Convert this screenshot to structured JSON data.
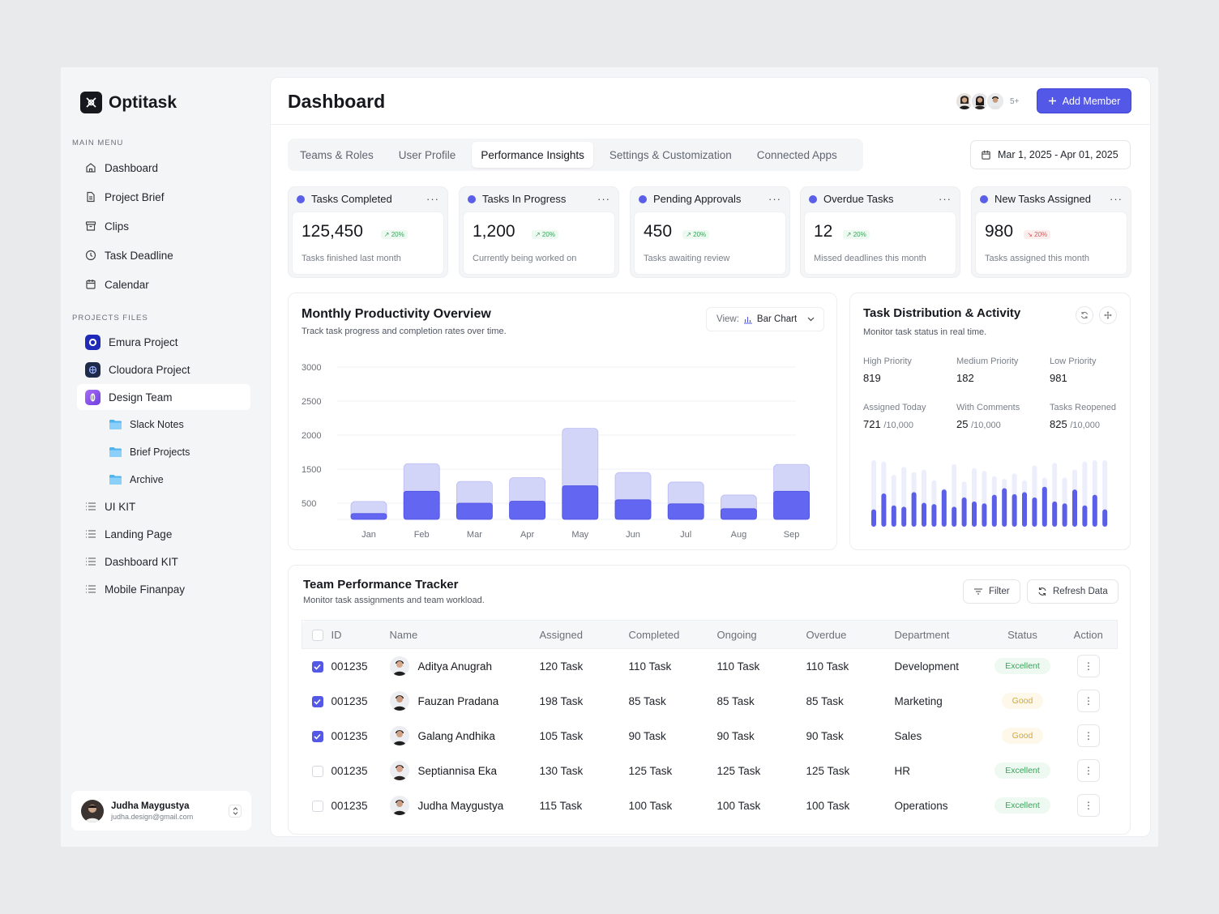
{
  "app": {
    "name": "Optitask"
  },
  "sidebar": {
    "main_menu_label": "MAIN MENU",
    "main_items": [
      {
        "label": "Dashboard",
        "icon": "home-icon"
      },
      {
        "label": "Project Brief",
        "icon": "document-icon"
      },
      {
        "label": "Clips",
        "icon": "archive-icon"
      },
      {
        "label": "Task Deadline",
        "icon": "clock-icon"
      },
      {
        "label": "Calendar",
        "icon": "calendar-icon"
      }
    ],
    "projects_label": "PROJECTS FILES",
    "projects": [
      {
        "label": "Emura Project",
        "color": "#2b3bd4"
      },
      {
        "label": "Cloudora Project",
        "color": "#1e2a4a"
      },
      {
        "label": "Design Team",
        "color": "#8b4de8"
      }
    ],
    "folders": [
      {
        "label": "Slack Notes"
      },
      {
        "label": "Brief Projects"
      },
      {
        "label": "Archive"
      }
    ],
    "kits": [
      {
        "label": "UI KIT"
      },
      {
        "label": "Landing Page"
      },
      {
        "label": "Dashboard KIT"
      },
      {
        "label": "Mobile Finanpay"
      }
    ],
    "user": {
      "name": "Judha Maygustya",
      "email": "judha.design@gmail.com"
    }
  },
  "header": {
    "title": "Dashboard",
    "more_members": "5+",
    "add_member": "Add Member"
  },
  "tabs": [
    {
      "label": "Teams & Roles"
    },
    {
      "label": "User Profile"
    },
    {
      "label": "Performance Insights",
      "active": true
    },
    {
      "label": "Settings & Customization"
    },
    {
      "label": "Connected Apps"
    }
  ],
  "date_range": "Mar 1, 2025 -  Apr 01, 2025",
  "kpis": [
    {
      "title": "Tasks Completed",
      "value": "125,450",
      "change": "↗ 20%",
      "trend": "up",
      "sub": "Tasks finished last month"
    },
    {
      "title": "Tasks In Progress",
      "value": "1,200",
      "change": "↗ 20%",
      "trend": "up",
      "sub": "Currently being worked on"
    },
    {
      "title": "Pending Approvals",
      "value": "450",
      "change": "↗ 20%",
      "trend": "up",
      "sub": "Tasks awaiting review"
    },
    {
      "title": "Overdue Tasks",
      "value": "12",
      "change": "↗ 20%",
      "trend": "up",
      "sub": "Missed deadlines this month"
    },
    {
      "title": "New Tasks Assigned",
      "value": "980",
      "change": "↘ 20%",
      "trend": "down",
      "sub": "Tasks assigned this month"
    }
  ],
  "productivity": {
    "title": "Monthly Productivity Overview",
    "subtitle": "Track task progress and completion rates over time.",
    "view_label": "View:",
    "view_value": "Bar Chart"
  },
  "chart_data": {
    "type": "bar",
    "categories": [
      "Jan",
      "Feb",
      "Mar",
      "Apr",
      "May",
      "Jun",
      "Jul",
      "Aug",
      "Sep"
    ],
    "y_ticks": [
      "3000",
      "2500",
      "2000",
      "1500",
      "500"
    ],
    "series": [
      {
        "values": [
          550,
          1580,
          1140,
          1250,
          2100,
          1400,
          1120,
          740,
          1570
        ]
      },
      {
        "values": [
          180,
          850,
          500,
          560,
          1010,
          600,
          480,
          330,
          850
        ]
      }
    ],
    "colors": {
      "light": "#d2d4f8",
      "dark": "#6366f1"
    }
  },
  "distribution": {
    "title": "Task Distribution & Activity",
    "subtitle": "Monitor task status in real time.",
    "stats": [
      {
        "label": "High Priority",
        "value": "819"
      },
      {
        "label": "Medium Priority",
        "value": "182"
      },
      {
        "label": "Low Priority",
        "value": "981"
      },
      {
        "label": "Assigned Today",
        "value": "721",
        "suffix": "/10,000"
      },
      {
        "label": "With Comments",
        "value": "25",
        "suffix": "/10,000"
      },
      {
        "label": "Tasks Reopened",
        "value": "825",
        "suffix": "/10,000"
      }
    ],
    "activity_levels": [
      0.26,
      0.5,
      0.32,
      0.3,
      0.52,
      0.36,
      0.34,
      0.56,
      0.3,
      0.44,
      0.38,
      0.35,
      0.48,
      0.58,
      0.49,
      0.52,
      0.44,
      0.6,
      0.38,
      0.35,
      0.56,
      0.32,
      0.48,
      0.26
    ],
    "activity_totals": [
      1.0,
      0.98,
      0.78,
      0.9,
      0.82,
      0.86,
      0.7,
      0.58,
      0.94,
      0.68,
      0.88,
      0.84,
      0.76,
      0.72,
      0.8,
      0.7,
      0.92,
      0.74,
      0.96,
      0.74,
      0.86,
      0.98,
      1.0,
      1.0
    ]
  },
  "tracker": {
    "title": "Team Performance Tracker",
    "subtitle": "Monitor task assignments and team workload.",
    "filter": "Filter",
    "refresh": "Refresh Data",
    "columns": [
      "ID",
      "Name",
      "Assigned",
      "Completed",
      "Ongoing",
      "Overdue",
      "Department",
      "Status",
      "Action"
    ],
    "rows": [
      {
        "checked": true,
        "id": "001235",
        "name": "Aditya Anugrah",
        "assigned": "120 Task",
        "completed": "110 Task",
        "ongoing": "110 Task",
        "overdue": "110 Task",
        "department": "Development",
        "status": "Excellent"
      },
      {
        "checked": true,
        "id": "001235",
        "name": "Fauzan Pradana",
        "assigned": "198 Task",
        "completed": "85 Task",
        "ongoing": "85 Task",
        "overdue": "85 Task",
        "department": "Marketing",
        "status": "Good"
      },
      {
        "checked": true,
        "id": "001235",
        "name": "Galang Andhika",
        "assigned": "105 Task",
        "completed": "90 Task",
        "ongoing": "90 Task",
        "overdue": "90 Task",
        "department": "Sales",
        "status": "Good"
      },
      {
        "checked": false,
        "id": "001235",
        "name": "Septiannisa Eka",
        "assigned": "130 Task",
        "completed": "125 Task",
        "ongoing": "125 Task",
        "overdue": "125 Task",
        "department": "HR",
        "status": "Excellent"
      },
      {
        "checked": false,
        "id": "001235",
        "name": "Judha Maygustya",
        "assigned": "115 Task",
        "completed": "100 Task",
        "ongoing": "100 Task",
        "overdue": "100 Task",
        "department": "Operations",
        "status": "Excellent"
      }
    ]
  }
}
